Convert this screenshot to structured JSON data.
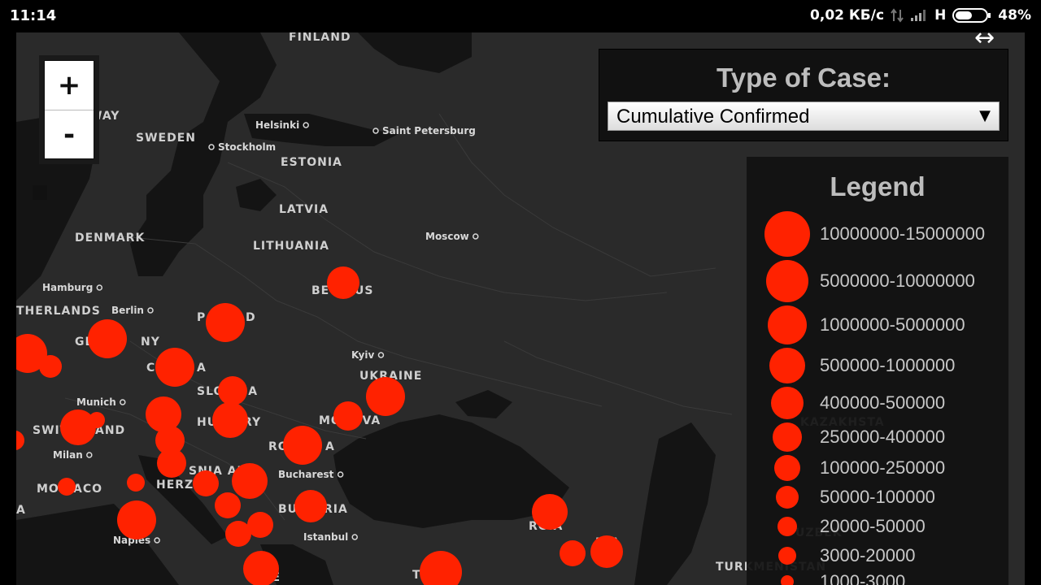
{
  "status_bar": {
    "time": "11:14",
    "network_speed": "0,02 КБ/с",
    "network_type": "H",
    "battery": "48%"
  },
  "map": {
    "background_color": "#2a2a2a",
    "land_color": "#2e2e2e",
    "water_color": "#141414",
    "marker_color": "#ff2200",
    "zoom_in_label": "+",
    "zoom_out_label": "-",
    "country_labels": [
      "FINLAND",
      "WAY",
      "SWEDEN",
      "ESTONIA",
      "LATVIA",
      "DENMARK",
      "LITHUANIA",
      "BE",
      "US",
      "THERLANDS",
      "GE",
      "NY",
      "P",
      "D",
      "C",
      "A",
      "UKRAINE",
      "SLO",
      "IA",
      "HU",
      "RY",
      "MO",
      "OVA",
      "SWIT",
      "AND",
      "RO",
      "A",
      "MO",
      "ACO",
      "A",
      "SNIA AND",
      "HERZ",
      "OVI",
      "BU",
      "RIA",
      "AL",
      "GE",
      "RGIA",
      "NIA",
      "KAZAKHSTA",
      "UZBEK",
      "TURKMENISTAN",
      "T",
      "EE"
    ],
    "city_labels": [
      "Helsinki",
      "Saint Petersburg",
      "Stockholm",
      "Moscow",
      "Hamburg",
      "Berlin",
      "Kyiv",
      "Munich",
      "Milan",
      "Bucharest",
      "Istanbul",
      "Naples"
    ]
  },
  "type_panel": {
    "title": "Type of Case:",
    "selected": "Cumulative Confirmed"
  },
  "legend": {
    "title": "Legend",
    "items": [
      {
        "label": "10000000-15000000"
      },
      {
        "label": "5000000-10000000"
      },
      {
        "label": "1000000-5000000"
      },
      {
        "label": "500000-1000000"
      },
      {
        "label": "400000-500000"
      },
      {
        "label": "250000-400000"
      },
      {
        "label": "100000-250000"
      },
      {
        "label": "50000-100000"
      },
      {
        "label": "20000-50000"
      },
      {
        "label": "3000-20000"
      },
      {
        "label": "1000-3000"
      }
    ]
  }
}
